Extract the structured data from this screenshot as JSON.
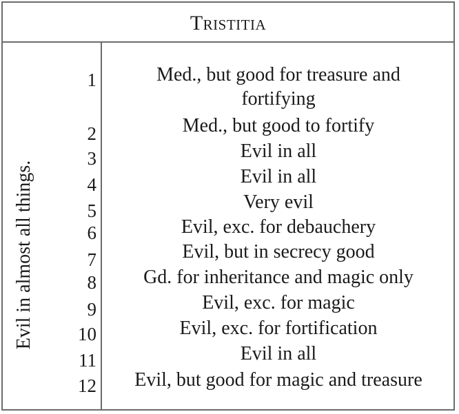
{
  "table": {
    "title": "Tristitia",
    "side_label": "Evil in almost all things.",
    "rows": [
      {
        "num": "1",
        "text": "Med., but good for treasure and fortifying"
      },
      {
        "num": "2",
        "text": "Med., but good to fortify"
      },
      {
        "num": "3",
        "text": "Evil in all"
      },
      {
        "num": "4",
        "text": "Evil in all"
      },
      {
        "num": "5",
        "text": "Very evil"
      },
      {
        "num": "6",
        "text": "Evil, exc. for debauchery"
      },
      {
        "num": "7",
        "text": "Evil, but in secrecy good"
      },
      {
        "num": "8",
        "text": "Gd. for inheritance and magic only"
      },
      {
        "num": "9",
        "text": "Evil, exc. for magic"
      },
      {
        "num": "10",
        "text": "Evil, exc. for fortification"
      },
      {
        "num": "11",
        "text": "Evil in all"
      },
      {
        "num": "12",
        "text": "Evil, but good for magic and treasure"
      }
    ]
  }
}
